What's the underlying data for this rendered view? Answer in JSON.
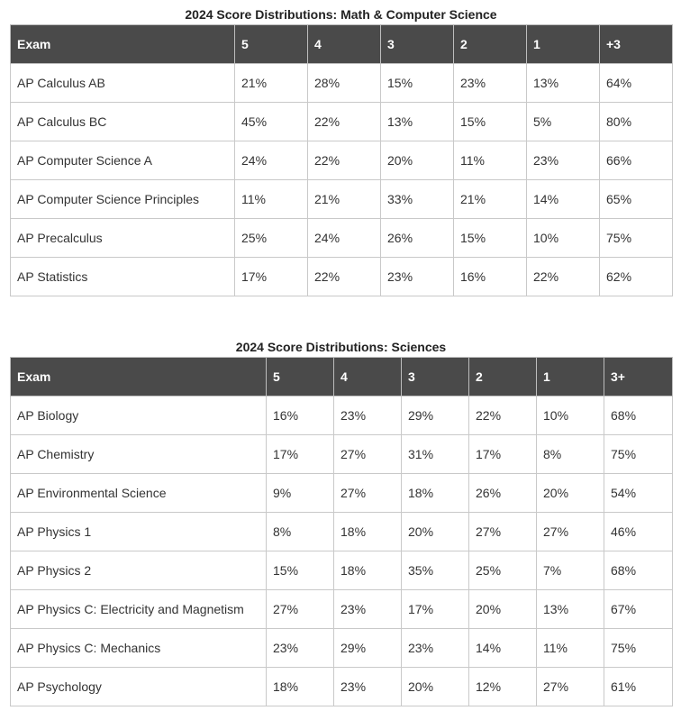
{
  "table1": {
    "caption": "2024 Score Distributions: Math & Computer Science",
    "headers": [
      "Exam",
      "5",
      "4",
      "3",
      "2",
      "1",
      "+3"
    ],
    "rows": [
      [
        "AP Calculus AB",
        "21%",
        "28%",
        "15%",
        "23%",
        "13%",
        "64%"
      ],
      [
        "AP Calculus BC",
        "45%",
        "22%",
        "13%",
        "15%",
        "5%",
        "80%"
      ],
      [
        "AP Computer Science A",
        "24%",
        "22%",
        "20%",
        "11%",
        "23%",
        "66%"
      ],
      [
        "AP Computer Science Principles",
        "11%",
        "21%",
        "33%",
        "21%",
        "14%",
        "65%"
      ],
      [
        "AP Precalculus",
        "25%",
        "24%",
        "26%",
        "15%",
        "10%",
        "75%"
      ],
      [
        "AP Statistics",
        "17%",
        "22%",
        "23%",
        "16%",
        "22%",
        "62%"
      ]
    ]
  },
  "table2": {
    "caption": "2024 Score Distributions: Sciences",
    "headers": [
      "Exam",
      "5",
      "4",
      "3",
      "2",
      "1",
      "3+"
    ],
    "rows": [
      [
        "AP Biology",
        "16%",
        "23%",
        "29%",
        "22%",
        "10%",
        "68%"
      ],
      [
        "AP Chemistry",
        "17%",
        "27%",
        "31%",
        "17%",
        "8%",
        "75%"
      ],
      [
        "AP Environmental Science",
        "9%",
        "27%",
        "18%",
        "26%",
        "20%",
        "54%"
      ],
      [
        "AP Physics 1",
        "8%",
        "18%",
        "20%",
        "27%",
        "27%",
        "46%"
      ],
      [
        "AP Physics 2",
        "15%",
        "18%",
        "35%",
        "25%",
        "7%",
        "68%"
      ],
      [
        "AP Physics C: Electricity and Magnetism",
        "27%",
        "23%",
        "17%",
        "20%",
        "13%",
        "67%"
      ],
      [
        "AP Physics C: Mechanics",
        "23%",
        "29%",
        "23%",
        "14%",
        "11%",
        "75%"
      ],
      [
        "AP Psychology",
        "18%",
        "23%",
        "20%",
        "12%",
        "27%",
        "61%"
      ]
    ]
  }
}
